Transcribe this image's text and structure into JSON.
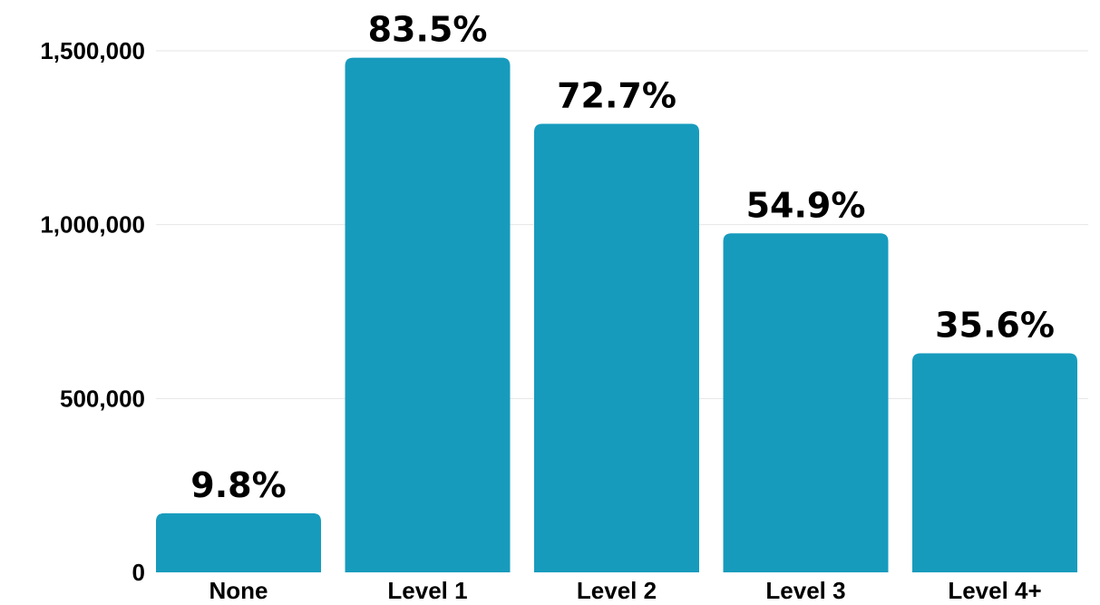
{
  "chart_data": {
    "type": "bar",
    "categories": [
      "None",
      "Level 1",
      "Level 2",
      "Level 3",
      "Level 4+"
    ],
    "values": [
      170000,
      1480000,
      1290000,
      975000,
      630000
    ],
    "data_labels": [
      "9.8%",
      "83.5%",
      "72.7%",
      "54.9%",
      "35.6%"
    ],
    "title": "",
    "xlabel": "",
    "ylabel": "",
    "ylim": [
      0,
      1500000
    ],
    "yticks": [
      0,
      500000,
      1000000,
      1500000
    ],
    "ytick_labels": [
      "0",
      "500,000",
      "1,000,000",
      "1,500,000"
    ],
    "grid": true,
    "legend": "none",
    "bar_color": "#179bbd"
  }
}
